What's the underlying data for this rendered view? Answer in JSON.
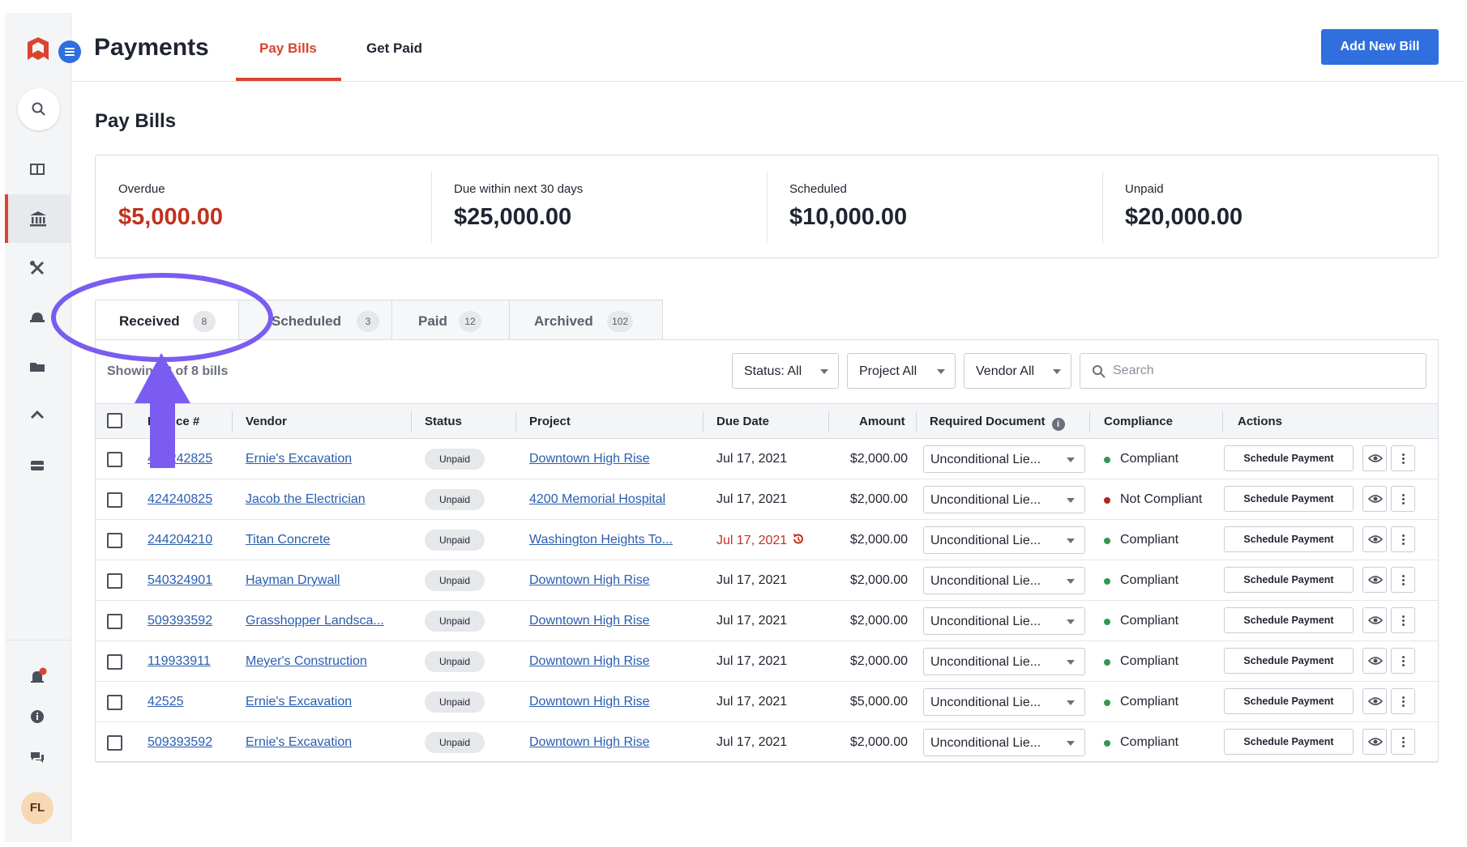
{
  "app": {
    "title": "Payments"
  },
  "top_tabs": [
    {
      "label": "Pay Bills",
      "active": true
    },
    {
      "label": "Get Paid",
      "active": false
    }
  ],
  "add_button": "Add New Bill",
  "page_title": "Pay Bills",
  "summary": [
    {
      "label": "Overdue",
      "value": "$5,000.00",
      "color": "#c0321f"
    },
    {
      "label": "Due within next 30 days",
      "value": "$25,000.00"
    },
    {
      "label": "Scheduled",
      "value": "$10,000.00"
    },
    {
      "label": "Unpaid",
      "value": "$20,000.00"
    }
  ],
  "bill_tabs": [
    {
      "label": "Received",
      "count": "8",
      "active": true
    },
    {
      "label": "Scheduled",
      "count": "3"
    },
    {
      "label": "Paid",
      "count": "12"
    },
    {
      "label": "Archived",
      "count": "102"
    }
  ],
  "showing_text": "Showing 8 of 8 bills",
  "filters": {
    "status": "Status: All",
    "project": "Project All",
    "vendor": "Vendor All",
    "search_placeholder": "Search"
  },
  "columns": {
    "invoice": "Invoice #",
    "vendor": "Vendor",
    "status": "Status",
    "project": "Project",
    "due_date": "Due Date",
    "amount": "Amount",
    "required_document": "Required Document",
    "compliance": "Compliance",
    "actions": "Actions"
  },
  "rows": [
    {
      "invoice": "424242825",
      "vendor": "Ernie's Excavation",
      "status": "Unpaid",
      "project": "Downtown High Rise",
      "due": "Jul 17, 2021",
      "amount": "$2,000.00",
      "doc": "Unconditional Lie...",
      "compliance": "Compliant",
      "action": "Schedule Payment"
    },
    {
      "invoice": "424240825",
      "vendor": "Jacob the Electrician",
      "status": "Unpaid",
      "project": "4200 Memorial Hospital",
      "due": "Jul 17, 2021",
      "amount": "$2,000.00",
      "doc": "Unconditional Lie...",
      "compliance": "Not Compliant",
      "action": "Schedule Payment"
    },
    {
      "invoice": "244204210",
      "vendor": "Titan Concrete",
      "status": "Unpaid",
      "project": "Washington Heights To...",
      "due": "Jul 17, 2021",
      "amount": "$2,000.00",
      "doc": "Unconditional Lie...",
      "compliance": "Compliant",
      "action": "Schedule Payment",
      "overdue": true
    },
    {
      "invoice": "540324901",
      "vendor": "Hayman Drywall",
      "status": "Unpaid",
      "project": "Downtown High Rise",
      "due": "Jul 17, 2021",
      "amount": "$2,000.00",
      "doc": "Unconditional Lie...",
      "compliance": "Compliant",
      "action": "Schedule Payment"
    },
    {
      "invoice": "509393592",
      "vendor": "Grasshopper Landsca...",
      "status": "Unpaid",
      "project": "Downtown High Rise",
      "due": "Jul 17, 2021",
      "amount": "$2,000.00",
      "doc": "Unconditional Lie...",
      "compliance": "Compliant",
      "action": "Schedule Payment"
    },
    {
      "invoice": "119933911",
      "vendor": "Meyer's Construction",
      "status": "Unpaid",
      "project": "Downtown High Rise",
      "due": "Jul 17, 2021",
      "amount": "$2,000.00",
      "doc": "Unconditional Lie...",
      "compliance": "Compliant",
      "action": "Schedule Payment"
    },
    {
      "invoice": "42525",
      "vendor": "Ernie's Excavation",
      "status": "Unpaid",
      "project": "Downtown High Rise",
      "due": "Jul 17, 2021",
      "amount": "$5,000.00",
      "doc": "Unconditional Lie...",
      "compliance": "Compliant",
      "action": "Schedule Payment"
    },
    {
      "invoice": "509393592",
      "vendor": "Ernie's Excavation",
      "status": "Unpaid",
      "project": "Downtown High Rise",
      "due": "Jul 17, 2021",
      "amount": "$2,000.00",
      "doc": "Unconditional Lie...",
      "compliance": "Compliant",
      "action": "Schedule Payment"
    }
  ],
  "user": {
    "initials": "FL"
  },
  "colors": {
    "accent_red": "#d9442e",
    "primary_blue": "#2f6fde",
    "compliant": "#2e9a4b",
    "not_compliant": "#b0251c",
    "annotation": "#7b5cf0"
  },
  "icons": {
    "sidebar": [
      "search-icon",
      "table-icon",
      "bank-icon",
      "tools-icon",
      "hardhat-icon",
      "folder-icon",
      "arrow-up-icon",
      "inbox-icon",
      "bell-icon",
      "info-icon",
      "chat-icon"
    ]
  }
}
